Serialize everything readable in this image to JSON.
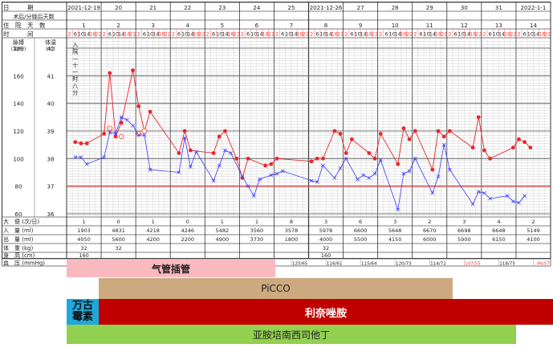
{
  "header": {
    "date_label": "日　　　期",
    "postop_label": "术后/分娩后天数",
    "stay_label": "住　院　天　数",
    "time_label": "时　　　间",
    "pulse_label": "脉搏",
    "pulse_unit": "(次/分)",
    "temp_label": "体温",
    "temp_unit": "(℃)",
    "time_slots": [
      "2",
      "6",
      "10",
      "14",
      "18",
      "22"
    ],
    "note_text": "入院—十一时八分"
  },
  "days": [
    {
      "date": "2021-12-19",
      "stay": "1"
    },
    {
      "date": "20",
      "stay": "2"
    },
    {
      "date": "21",
      "stay": "3"
    },
    {
      "date": "22",
      "stay": "4"
    },
    {
      "date": "23",
      "stay": "5"
    },
    {
      "date": "24",
      "stay": "6"
    },
    {
      "date": "25",
      "stay": "7"
    },
    {
      "date": "2021-12-26",
      "stay": "8"
    },
    {
      "date": "27",
      "stay": "9"
    },
    {
      "date": "28",
      "stay": "10"
    },
    {
      "date": "29",
      "stay": "11"
    },
    {
      "date": "30",
      "stay": "12"
    },
    {
      "date": "31",
      "stay": "13"
    },
    {
      "date": "2022-1-1",
      "stay": "14"
    }
  ],
  "axes": {
    "pulse_ticks": [
      "180",
      "160",
      "140",
      "120",
      "100",
      "80",
      "60"
    ],
    "temp_ticks": [
      "42",
      "41",
      "40",
      "39",
      "38",
      "37",
      "36"
    ]
  },
  "bottom_table": {
    "rows": [
      {
        "label": "大　便 (次/日)",
        "values": [
          "1",
          "0",
          "1",
          "0",
          "1",
          "1",
          "8",
          "3",
          "6",
          "3",
          "2",
          "3",
          "4",
          "2"
        ]
      },
      {
        "label": "入　量 (ml)",
        "values": [
          "1903",
          "4831",
          "4218",
          "4246",
          "5482",
          "3560",
          "3578",
          "5978",
          "6600",
          "5648",
          "6670",
          "6698",
          "6648",
          "5149"
        ]
      },
      {
        "label": "出　量 (ml)",
        "values": [
          "4050",
          "5600",
          "4200",
          "2200",
          "4900",
          "3730",
          "1800",
          "4000",
          "5500",
          "4150",
          "6000",
          "5900",
          "6150",
          "4100"
        ]
      },
      {
        "label": "体　重 (kg)",
        "values": [
          "32",
          "32",
          "",
          "",
          "",
          "",
          "",
          "32",
          "",
          "",
          "",
          "",
          "",
          ""
        ]
      },
      {
        "label": "身　高 (cm)",
        "values": [
          "160",
          "",
          "",
          "",
          "",
          "",
          "",
          "160",
          "",
          "",
          "",
          "",
          "",
          ""
        ]
      }
    ],
    "bp_label": "血　压 (mmHg)",
    "bp": [
      {
        "day": 0,
        "text": "113/77",
        "pos": "left",
        "color": "#222222"
      },
      {
        "day": 0,
        "text": "120/72",
        "pos": "right",
        "color": "#222222"
      },
      {
        "day": 1,
        "text": "125/76",
        "pos": "right",
        "color": "#222222"
      },
      {
        "day": 2,
        "text": "105/59",
        "pos": "right",
        "color": "#ff3333"
      },
      {
        "day": 3,
        "text": "113/55",
        "pos": "right",
        "color": "#ff3333"
      },
      {
        "day": 4,
        "text": "127/66",
        "pos": "right",
        "color": "#222222"
      },
      {
        "day": 5,
        "text": "128/66",
        "pos": "right",
        "color": "#222222"
      },
      {
        "day": 6,
        "text": "125/65",
        "pos": "right",
        "color": "#222222"
      },
      {
        "day": 7,
        "text": "116/61",
        "pos": "right",
        "color": "#222222"
      },
      {
        "day": 8,
        "text": "115/64",
        "pos": "right",
        "color": "#222222"
      },
      {
        "day": 9,
        "text": "120/73",
        "pos": "right",
        "color": "#222222"
      },
      {
        "day": 10,
        "text": "114/72",
        "pos": "right",
        "color": "#222222"
      },
      {
        "day": 11,
        "text": "107/55",
        "pos": "right",
        "color": "#ff3333"
      },
      {
        "day": 12,
        "text": "118/75",
        "pos": "right",
        "color": "#222222"
      },
      {
        "day": 13,
        "text": "96/57",
        "pos": "right",
        "color": "#ff3333"
      }
    ]
  },
  "treatments": {
    "intubation": "气管插管",
    "picco": "PiCCO",
    "vancomycin": "万古\n霉素",
    "linezolid": "利奈唑胺",
    "imipenem": "亚胺培南西司他丁"
  },
  "chart_data": {
    "type": "line",
    "x_unit": "4-hour time slot index from 2021-12-19 02:00 (6 slots per day, 14 days)",
    "temp_ylim": [
      36,
      42
    ],
    "pulse_ylim": [
      60,
      180
    ],
    "series": [
      {
        "color": "#e8262b",
        "marker": "filled-circle",
        "axis": "temperature",
        "points": [
          [
            1,
            38.6
          ],
          [
            2,
            38.55
          ],
          [
            3,
            38.55
          ],
          [
            6,
            38.9
          ],
          [
            7,
            41.1
          ],
          [
            8,
            38.8
          ],
          [
            9,
            39.3
          ],
          [
            11,
            41.2
          ],
          [
            12,
            39.9
          ],
          [
            13,
            39.0
          ],
          [
            14,
            39.7
          ],
          [
            19,
            38.2
          ],
          [
            20,
            39.0
          ],
          [
            21,
            38.3
          ],
          [
            25,
            38.2
          ],
          [
            26,
            38.8
          ],
          [
            27,
            39
          ],
          [
            29,
            38.0
          ],
          [
            30,
            37.3
          ],
          [
            31,
            38
          ],
          [
            34,
            37.75
          ],
          [
            35,
            37.8
          ],
          [
            36,
            38
          ],
          [
            42,
            37.9
          ],
          [
            43,
            38
          ],
          [
            44,
            38
          ],
          [
            46,
            39
          ],
          [
            47,
            38.9
          ],
          [
            48,
            38.2
          ],
          [
            49,
            38.7
          ],
          [
            52,
            38.2
          ],
          [
            53,
            38.0
          ],
          [
            54,
            38.9
          ],
          [
            57,
            37.8
          ],
          [
            58,
            39.1
          ],
          [
            59,
            38.7
          ],
          [
            60,
            39
          ],
          [
            63,
            37.6
          ],
          [
            64,
            39.0
          ],
          [
            65,
            38.8
          ],
          [
            66,
            39
          ],
          [
            70,
            38.4
          ],
          [
            71,
            39.5
          ],
          [
            72,
            38.3
          ],
          [
            73,
            38.0
          ],
          [
            77,
            38.4
          ],
          [
            78,
            38.7
          ],
          [
            79,
            38.6
          ],
          [
            80,
            38.4
          ]
        ]
      },
      {
        "color": "#ff4d4d",
        "marker": "open-circle",
        "axis": "temperature",
        "points": [
          [
            7,
            39.1
          ],
          [
            9,
            38.8
          ],
          [
            12,
            38.9
          ],
          [
            13,
            39.0
          ]
        ]
      },
      {
        "color": "#3a3aff",
        "marker": "x",
        "axis": "pulse",
        "points": [
          [
            1,
            101
          ],
          [
            2,
            101
          ],
          [
            3,
            96
          ],
          [
            6,
            101
          ],
          [
            7,
            119
          ],
          [
            8,
            118
          ],
          [
            9,
            130
          ],
          [
            10,
            128
          ],
          [
            11,
            124
          ],
          [
            12,
            117
          ],
          [
            13,
            117
          ],
          [
            14,
            92
          ],
          [
            19,
            90
          ],
          [
            20,
            115
          ],
          [
            21,
            94
          ],
          [
            22,
            105
          ],
          [
            25,
            84
          ],
          [
            26,
            95
          ],
          [
            27,
            106
          ],
          [
            28,
            104
          ],
          [
            30,
            87
          ],
          [
            31,
            80
          ],
          [
            32,
            73
          ],
          [
            33,
            85
          ],
          [
            35,
            88
          ],
          [
            36,
            89
          ],
          [
            37,
            91
          ],
          [
            42,
            84
          ],
          [
            43,
            83
          ],
          [
            44,
            95
          ],
          [
            46,
            86
          ],
          [
            47,
            93
          ],
          [
            48,
            100
          ],
          [
            50,
            85
          ],
          [
            51,
            88
          ],
          [
            52,
            86
          ],
          [
            53,
            89
          ],
          [
            54,
            99
          ],
          [
            57,
            63
          ],
          [
            58,
            89
          ],
          [
            59,
            91
          ],
          [
            60,
            100
          ],
          [
            63,
            75
          ],
          [
            64,
            87
          ],
          [
            65,
            110
          ],
          [
            66,
            92
          ],
          [
            70,
            67
          ],
          [
            71,
            76
          ],
          [
            72,
            75
          ],
          [
            73,
            71
          ],
          [
            76,
            73
          ],
          [
            77,
            69
          ],
          [
            78,
            68
          ],
          [
            79,
            73
          ]
        ]
      }
    ]
  }
}
